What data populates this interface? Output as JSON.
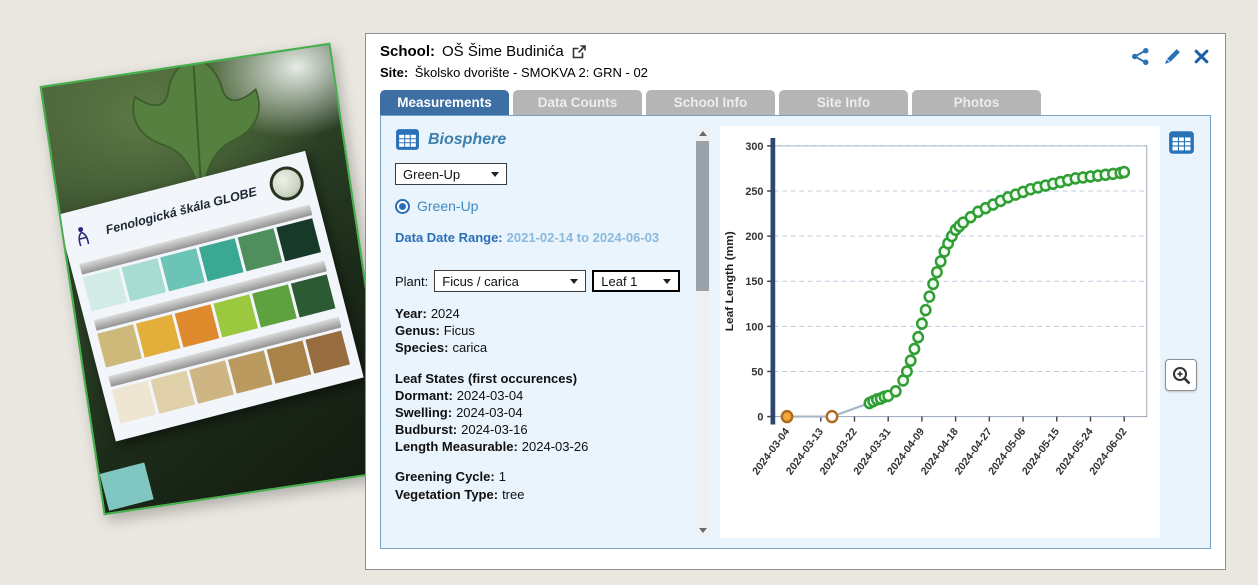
{
  "header": {
    "school_label": "School:",
    "school_name": "OŠ Šime Budinića",
    "site_label": "Site:",
    "site_value": "Školsko dvorište - SMOKVA 2: GRN - 02"
  },
  "tabs": {
    "measurements": "Measurements",
    "data_counts": "Data Counts",
    "school_info": "School Info",
    "site_info": "Site Info",
    "photos": "Photos"
  },
  "sidebar": {
    "section_title": "Biosphere",
    "protocol_select_value": "Green-Up",
    "radio_label": "Green-Up",
    "date_range_label": "Data Date Range:",
    "date_range_value": "2021-02-14 to 2024-06-03",
    "plant_label": "Plant:",
    "plant_select_value": "Ficus / carica",
    "leaf_select_value": "Leaf 1",
    "info": [
      {
        "label": "Year:",
        "value": "2024"
      },
      {
        "label": "Genus:",
        "value": "Ficus"
      },
      {
        "label": "Species:",
        "value": "carica"
      }
    ],
    "leaf_states_heading": "Leaf States (first occurences)",
    "leaf_states": [
      {
        "label": "Dormant:",
        "value": "2024-03-04"
      },
      {
        "label": "Swelling:",
        "value": "2024-03-04"
      },
      {
        "label": "Budburst:",
        "value": "2024-03-16"
      },
      {
        "label": "Length Measurable:",
        "value": "2024-03-26"
      }
    ],
    "cycle": [
      {
        "label": "Greening Cycle:",
        "value": "1"
      },
      {
        "label": "Vegetation Type:",
        "value": "tree"
      }
    ]
  },
  "photo": {
    "card_title": "Fenologická škála GLOBE",
    "swatch_rows": [
      [
        "#d2ebe4",
        "#a6dcd2",
        "#6cc4b6",
        "#3aa893",
        "#4f8f5e",
        "#17392a"
      ],
      [
        "#cdb97a",
        "#e3ae3a",
        "#df8a2d",
        "#9cc83f",
        "#5da23f",
        "#2c5a33"
      ],
      [
        "#eee6d2",
        "#e0d0aa",
        "#cfb584",
        "#bb9a60",
        "#a9824a",
        "#976c3e"
      ]
    ]
  },
  "colors": {
    "accent_blue": "#2a72b8",
    "tab_active": "#3d6fa4",
    "green_point": "#2f9e33",
    "orange_point": "#b06a1e"
  },
  "chart_data": {
    "type": "scatter",
    "title": "",
    "xlabel": "",
    "ylabel": "Leaf Length (mm)",
    "ylim": [
      0,
      300
    ],
    "ytick_step": 50,
    "grid": "dashed-horizontal",
    "legend": "none",
    "x_range": [
      "2024-03-04",
      "2024-06-05"
    ],
    "categories": [
      "2024-03-04",
      "2024-03-13",
      "2024-03-22",
      "2024-03-31",
      "2024-04-09",
      "2024-04-18",
      "2024-04-27",
      "2024-05-06",
      "2024-05-15",
      "2024-05-24",
      "2024-06-02"
    ],
    "line_color": "#a9b6c6",
    "series": [
      {
        "name": "dormant-budburst",
        "color": "#b06a1e",
        "point_fills": [
          "#f0a73c",
          "#ffffff"
        ],
        "points": [
          [
            "2024-03-04",
            0
          ],
          [
            "2024-03-16",
            0
          ]
        ]
      },
      {
        "name": "green-up-leaf-growth",
        "color": "#2f9e33",
        "fill": "#f2faf2",
        "points": [
          [
            "2024-03-26",
            15
          ],
          [
            "2024-03-27",
            17
          ],
          [
            "2024-03-28",
            19
          ],
          [
            "2024-03-29",
            20
          ],
          [
            "2024-03-30",
            22
          ],
          [
            "2024-03-31",
            23
          ],
          [
            "2024-04-02",
            28
          ],
          [
            "2024-04-04",
            40
          ],
          [
            "2024-04-05",
            50
          ],
          [
            "2024-04-06",
            62
          ],
          [
            "2024-04-07",
            75
          ],
          [
            "2024-04-08",
            88
          ],
          [
            "2024-04-09",
            103
          ],
          [
            "2024-04-10",
            118
          ],
          [
            "2024-04-11",
            133
          ],
          [
            "2024-04-12",
            147
          ],
          [
            "2024-04-13",
            160
          ],
          [
            "2024-04-14",
            172
          ],
          [
            "2024-04-15",
            183
          ],
          [
            "2024-04-16",
            192
          ],
          [
            "2024-04-17",
            200
          ],
          [
            "2024-04-18",
            207
          ],
          [
            "2024-04-19",
            211
          ],
          [
            "2024-04-20",
            215
          ],
          [
            "2024-04-22",
            221
          ],
          [
            "2024-04-24",
            227
          ],
          [
            "2024-04-26",
            231
          ],
          [
            "2024-04-28",
            235
          ],
          [
            "2024-04-30",
            239
          ],
          [
            "2024-05-02",
            243
          ],
          [
            "2024-05-04",
            246
          ],
          [
            "2024-05-06",
            249
          ],
          [
            "2024-05-08",
            252
          ],
          [
            "2024-05-10",
            254
          ],
          [
            "2024-05-12",
            256
          ],
          [
            "2024-05-14",
            258
          ],
          [
            "2024-05-16",
            260
          ],
          [
            "2024-05-18",
            262
          ],
          [
            "2024-05-20",
            264
          ],
          [
            "2024-05-22",
            265
          ],
          [
            "2024-05-24",
            266
          ],
          [
            "2024-05-26",
            267
          ],
          [
            "2024-05-28",
            268
          ],
          [
            "2024-05-30",
            269
          ],
          [
            "2024-06-01",
            270
          ],
          [
            "2024-06-02",
            271
          ]
        ]
      }
    ]
  }
}
